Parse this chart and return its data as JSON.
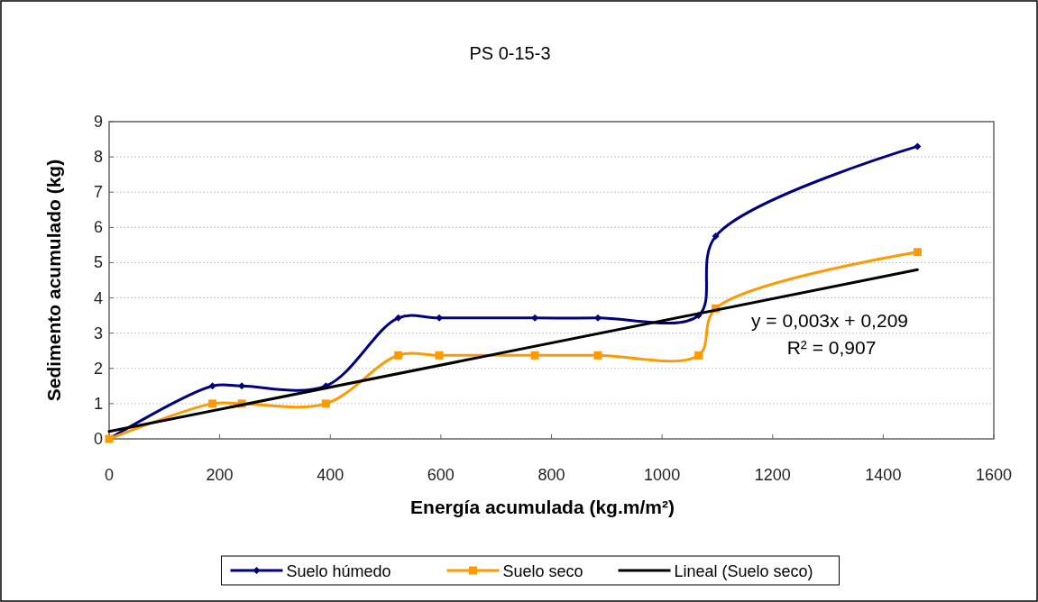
{
  "chart_data": {
    "type": "line",
    "title": "PS 0-15-3",
    "xlabel": "Energía acumulada (kg.m/m²)",
    "ylabel": "Sedimento acumulado (kg)",
    "x": [
      0,
      187,
      240,
      392,
      523,
      597,
      770,
      884,
      1066,
      1097,
      1462
    ],
    "series": [
      {
        "name": "Suelo húmedo",
        "color": "#000080",
        "marker": "diamond",
        "values": [
          0,
          1.5,
          1.5,
          1.5,
          3.43,
          3.43,
          3.43,
          3.43,
          3.5,
          5.75,
          8.3
        ]
      },
      {
        "name": "Suelo seco",
        "color": "#ff9900",
        "marker": "square",
        "values": [
          0,
          1.0,
          1.0,
          1.0,
          2.37,
          2.37,
          2.37,
          2.37,
          2.37,
          3.7,
          5.3
        ]
      },
      {
        "name": "Lineal (Suelo seco)",
        "color": "#000000",
        "marker": "none",
        "x": [
          0,
          1462
        ],
        "values": [
          0.21,
          4.8
        ]
      }
    ],
    "xlim": [
      0,
      1600
    ],
    "xticks": [
      0,
      200,
      400,
      600,
      800,
      1000,
      1200,
      1400,
      1600
    ],
    "ylim": [
      0,
      9
    ],
    "yticks": [
      0,
      1,
      2,
      3,
      4,
      5,
      6,
      7,
      8,
      9
    ],
    "grid": "y",
    "legend": "bottom",
    "annotations": [
      "y = 0,003x + 0,209",
      "R² = 0,907"
    ]
  }
}
